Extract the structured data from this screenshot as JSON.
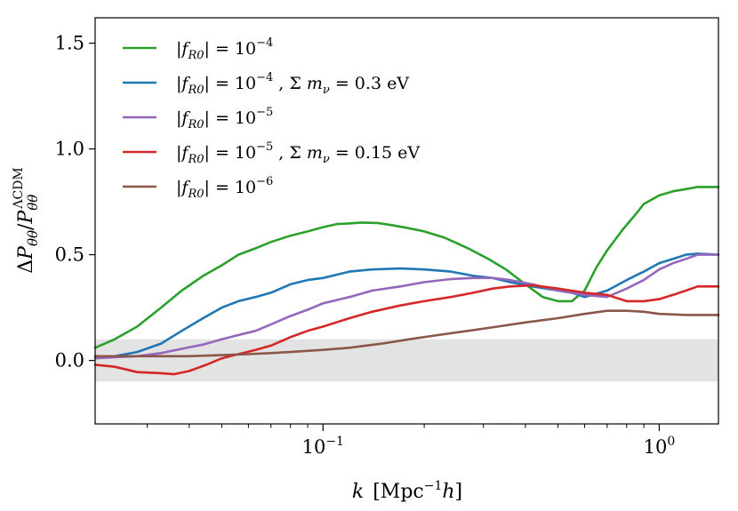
{
  "chart_data": {
    "type": "line",
    "title": "",
    "xlabel": "k [Mpc^-1 h]",
    "ylabel": "ΔP_θθ / P_θθ^ΛCDM",
    "xscale": "log",
    "xlim": [
      0.021,
      1.5
    ],
    "ylim": [
      -0.3,
      1.62
    ],
    "yticks": [
      0.0,
      0.5,
      1.0,
      1.5
    ],
    "ytick_labels": [
      "0.0",
      "0.5",
      "1.0",
      "1.5"
    ],
    "xticks": [
      0.1,
      1.0
    ],
    "xtick_labels": [
      "10^−1",
      "10^0"
    ],
    "shaded_band": {
      "y_low": -0.1,
      "y_high": 0.1,
      "color": "#e3e3e3"
    },
    "legend_position": "top-left",
    "series": [
      {
        "name": "|f_R0| = 10^−4",
        "color": "#2ca02c",
        "points": [
          [
            0.021,
            0.06
          ],
          [
            0.024,
            0.1
          ],
          [
            0.028,
            0.16
          ],
          [
            0.033,
            0.25
          ],
          [
            0.038,
            0.33
          ],
          [
            0.044,
            0.4
          ],
          [
            0.05,
            0.45
          ],
          [
            0.056,
            0.5
          ],
          [
            0.063,
            0.53
          ],
          [
            0.07,
            0.56
          ],
          [
            0.08,
            0.59
          ],
          [
            0.09,
            0.61
          ],
          [
            0.1,
            0.63
          ],
          [
            0.11,
            0.645
          ],
          [
            0.12,
            0.648
          ],
          [
            0.13,
            0.652
          ],
          [
            0.145,
            0.65
          ],
          [
            0.16,
            0.64
          ],
          [
            0.18,
            0.625
          ],
          [
            0.2,
            0.61
          ],
          [
            0.23,
            0.58
          ],
          [
            0.27,
            0.53
          ],
          [
            0.31,
            0.48
          ],
          [
            0.35,
            0.43
          ],
          [
            0.4,
            0.36
          ],
          [
            0.45,
            0.3
          ],
          [
            0.5,
            0.28
          ],
          [
            0.55,
            0.28
          ],
          [
            0.6,
            0.33
          ],
          [
            0.65,
            0.44
          ],
          [
            0.7,
            0.52
          ],
          [
            0.78,
            0.62
          ],
          [
            0.85,
            0.69
          ],
          [
            0.9,
            0.74
          ],
          [
            1.0,
            0.78
          ],
          [
            1.1,
            0.8
          ],
          [
            1.2,
            0.81
          ],
          [
            1.3,
            0.82
          ],
          [
            1.5,
            0.82
          ]
        ]
      },
      {
        "name": "|f_R0| = 10^−4, Σ m_ν = 0.3 eV",
        "color": "#1f77b4",
        "points": [
          [
            0.021,
            0.01
          ],
          [
            0.024,
            0.02
          ],
          [
            0.028,
            0.04
          ],
          [
            0.033,
            0.08
          ],
          [
            0.038,
            0.14
          ],
          [
            0.044,
            0.2
          ],
          [
            0.05,
            0.25
          ],
          [
            0.056,
            0.28
          ],
          [
            0.063,
            0.3
          ],
          [
            0.07,
            0.32
          ],
          [
            0.08,
            0.36
          ],
          [
            0.09,
            0.38
          ],
          [
            0.1,
            0.39
          ],
          [
            0.12,
            0.42
          ],
          [
            0.14,
            0.43
          ],
          [
            0.17,
            0.435
          ],
          [
            0.2,
            0.43
          ],
          [
            0.24,
            0.42
          ],
          [
            0.28,
            0.4
          ],
          [
            0.32,
            0.39
          ],
          [
            0.36,
            0.37
          ],
          [
            0.42,
            0.35
          ],
          [
            0.5,
            0.33
          ],
          [
            0.55,
            0.32
          ],
          [
            0.6,
            0.3
          ],
          [
            0.7,
            0.33
          ],
          [
            0.8,
            0.38
          ],
          [
            0.9,
            0.42
          ],
          [
            1.0,
            0.46
          ],
          [
            1.1,
            0.48
          ],
          [
            1.2,
            0.5
          ],
          [
            1.3,
            0.505
          ],
          [
            1.5,
            0.5
          ]
        ]
      },
      {
        "name": "|f_R0| = 10^−5",
        "color": "#9467bd",
        "points": [
          [
            0.021,
            0.01
          ],
          [
            0.024,
            0.015
          ],
          [
            0.028,
            0.02
          ],
          [
            0.033,
            0.035
          ],
          [
            0.038,
            0.055
          ],
          [
            0.044,
            0.075
          ],
          [
            0.05,
            0.1
          ],
          [
            0.056,
            0.12
          ],
          [
            0.063,
            0.14
          ],
          [
            0.07,
            0.17
          ],
          [
            0.08,
            0.21
          ],
          [
            0.09,
            0.24
          ],
          [
            0.1,
            0.27
          ],
          [
            0.12,
            0.3
          ],
          [
            0.14,
            0.33
          ],
          [
            0.17,
            0.35
          ],
          [
            0.2,
            0.37
          ],
          [
            0.24,
            0.385
          ],
          [
            0.28,
            0.39
          ],
          [
            0.32,
            0.39
          ],
          [
            0.36,
            0.38
          ],
          [
            0.42,
            0.36
          ],
          [
            0.5,
            0.33
          ],
          [
            0.6,
            0.31
          ],
          [
            0.7,
            0.3
          ],
          [
            0.8,
            0.34
          ],
          [
            0.9,
            0.38
          ],
          [
            1.0,
            0.43
          ],
          [
            1.1,
            0.46
          ],
          [
            1.2,
            0.48
          ],
          [
            1.3,
            0.5
          ],
          [
            1.5,
            0.5
          ]
        ]
      },
      {
        "name": "|f_R0| = 10^−5, Σ m_ν = 0.15 eV",
        "color": "#d62728",
        "points": [
          [
            0.021,
            -0.02
          ],
          [
            0.024,
            -0.03
          ],
          [
            0.028,
            -0.055
          ],
          [
            0.033,
            -0.06
          ],
          [
            0.036,
            -0.065
          ],
          [
            0.04,
            -0.05
          ],
          [
            0.045,
            -0.02
          ],
          [
            0.05,
            0.01
          ],
          [
            0.056,
            0.03
          ],
          [
            0.063,
            0.05
          ],
          [
            0.07,
            0.07
          ],
          [
            0.08,
            0.11
          ],
          [
            0.09,
            0.14
          ],
          [
            0.1,
            0.16
          ],
          [
            0.12,
            0.2
          ],
          [
            0.14,
            0.23
          ],
          [
            0.17,
            0.26
          ],
          [
            0.2,
            0.28
          ],
          [
            0.24,
            0.3
          ],
          [
            0.28,
            0.32
          ],
          [
            0.32,
            0.34
          ],
          [
            0.36,
            0.35
          ],
          [
            0.42,
            0.355
          ],
          [
            0.5,
            0.34
          ],
          [
            0.6,
            0.32
          ],
          [
            0.7,
            0.31
          ],
          [
            0.8,
            0.28
          ],
          [
            0.9,
            0.28
          ],
          [
            1.0,
            0.29
          ],
          [
            1.1,
            0.31
          ],
          [
            1.2,
            0.33
          ],
          [
            1.3,
            0.35
          ],
          [
            1.5,
            0.35
          ]
        ]
      },
      {
        "name": "|f_R0| = 10^−6",
        "color": "#8c564b",
        "points": [
          [
            0.021,
            0.02
          ],
          [
            0.03,
            0.02
          ],
          [
            0.04,
            0.02
          ],
          [
            0.05,
            0.025
          ],
          [
            0.06,
            0.03
          ],
          [
            0.07,
            0.035
          ],
          [
            0.08,
            0.04
          ],
          [
            0.1,
            0.05
          ],
          [
            0.12,
            0.06
          ],
          [
            0.15,
            0.08
          ],
          [
            0.18,
            0.1
          ],
          [
            0.22,
            0.12
          ],
          [
            0.27,
            0.14
          ],
          [
            0.33,
            0.16
          ],
          [
            0.4,
            0.18
          ],
          [
            0.5,
            0.2
          ],
          [
            0.6,
            0.22
          ],
          [
            0.7,
            0.235
          ],
          [
            0.8,
            0.235
          ],
          [
            0.9,
            0.23
          ],
          [
            1.0,
            0.22
          ],
          [
            1.2,
            0.215
          ],
          [
            1.5,
            0.215
          ]
        ]
      }
    ]
  }
}
